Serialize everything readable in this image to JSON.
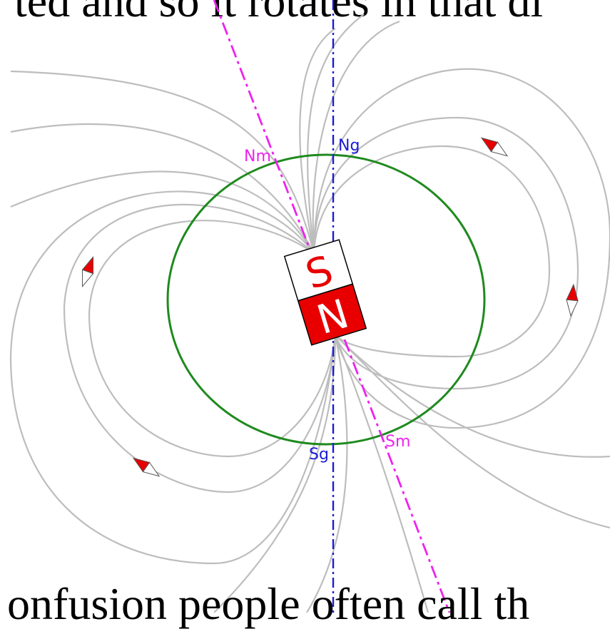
{
  "caption_top": "ted and so it rotates in that di",
  "caption_bottom": "onfusion people often call th",
  "labels": {
    "geographic_north": "Ng",
    "geographic_south": "Sg",
    "magnetic_north": "Nm",
    "magnetic_south": "Sm",
    "magnet_south_pole": "S",
    "magnet_north_pole": "N"
  },
  "colors": {
    "earth_circle": "#1e8a1e",
    "geographic_axis": "#1c1cd6",
    "magnetic_axis": "#ee22ee",
    "magnet_red": "#e80000",
    "field_lines": "#bdbdbd"
  }
}
